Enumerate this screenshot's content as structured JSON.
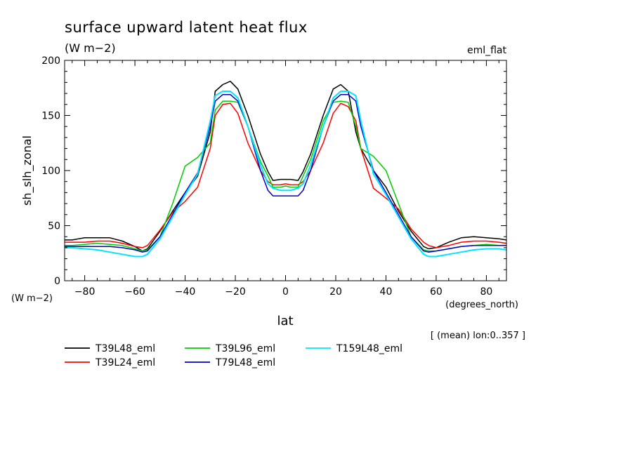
{
  "chart_data": {
    "type": "line",
    "title": "surface upward latent heat flux",
    "units": "(W m−2)",
    "experiment": "eml_flat",
    "ylabel": "sh_slh_zonal",
    "yunits": "(W m−2)",
    "xlabel": "lat",
    "xunits": "(degrees_north)",
    "note": "[ (mean) lon:0..357 ]",
    "xlim": [
      -88,
      88
    ],
    "ylim": [
      0,
      200
    ],
    "x_ticks": [
      -80,
      -60,
      -40,
      -20,
      0,
      20,
      40,
      60,
      80
    ],
    "y_ticks": [
      0,
      50,
      100,
      150,
      200
    ],
    "x_tick_labels": [
      "−80",
      "−60",
      "−40",
      "−20",
      "0",
      "20",
      "40",
      "60",
      "80"
    ],
    "y_tick_labels": [
      "0",
      "50",
      "100",
      "150",
      "200"
    ],
    "legend_position": "bottom",
    "series": [
      {
        "name": "T39L48_eml",
        "color": "#000000",
        "x": [
          -88,
          -85,
          -80,
          -75,
          -70,
          -65,
          -60,
          -57,
          -55,
          -50,
          -45,
          -40,
          -35,
          -30,
          -28,
          -25,
          -22,
          -19,
          -15,
          -10,
          -7,
          -5,
          -2,
          0,
          2,
          5,
          7,
          10,
          15,
          19,
          22,
          25,
          28,
          30,
          35,
          40,
          45,
          50,
          55,
          57,
          60,
          65,
          70,
          75,
          80,
          85,
          88
        ],
        "y": [
          37,
          37,
          39,
          39,
          39,
          36,
          31,
          27,
          29,
          45,
          63,
          80,
          95,
          135,
          172,
          178,
          181,
          174,
          150,
          115,
          99,
          91,
          92,
          92,
          92,
          91,
          99,
          115,
          150,
          174,
          178,
          172,
          135,
          120,
          100,
          85,
          63,
          45,
          31,
          29,
          30,
          35,
          39,
          40,
          39,
          38,
          37
        ]
      },
      {
        "name": "T39L24_eml",
        "color": "#ff0000",
        "x": [
          -88,
          -85,
          -80,
          -75,
          -70,
          -65,
          -60,
          -57,
          -55,
          -50,
          -45,
          -40,
          -35,
          -30,
          -28,
          -25,
          -22,
          -19,
          -15,
          -10,
          -7,
          -5,
          -2,
          0,
          2,
          5,
          7,
          10,
          15,
          19,
          22,
          25,
          28,
          30,
          35,
          40,
          45,
          50,
          55,
          57,
          60,
          65,
          70,
          75,
          80,
          85,
          88
        ],
        "y": [
          35,
          35,
          35,
          36,
          36,
          34,
          31,
          30,
          32,
          46,
          62,
          72,
          85,
          120,
          150,
          160,
          161,
          152,
          125,
          100,
          90,
          87,
          87,
          88,
          87,
          87,
          90,
          100,
          125,
          152,
          161,
          158,
          145,
          120,
          84,
          75,
          65,
          47,
          35,
          32,
          30,
          32,
          35,
          36,
          36,
          35,
          34
        ]
      },
      {
        "name": "T39L96_eml",
        "color": "#00cc00",
        "x": [
          -88,
          -85,
          -80,
          -75,
          -70,
          -65,
          -60,
          -57,
          -55,
          -50,
          -45,
          -40,
          -35,
          -30,
          -28,
          -25,
          -22,
          -19,
          -15,
          -10,
          -7,
          -5,
          -2,
          0,
          2,
          5,
          7,
          10,
          15,
          19,
          22,
          25,
          28,
          30,
          35,
          40,
          45,
          50,
          55,
          57,
          60,
          65,
          70,
          75,
          80,
          85,
          88
        ],
        "y": [
          32,
          32,
          33,
          34,
          33,
          32,
          29,
          27,
          28,
          40,
          70,
          104,
          112,
          125,
          155,
          163,
          163,
          162,
          140,
          108,
          95,
          85,
          85,
          86,
          85,
          85,
          95,
          110,
          145,
          162,
          163,
          162,
          140,
          120,
          113,
          100,
          70,
          40,
          28,
          27,
          27,
          29,
          31,
          32,
          33,
          32,
          32
        ]
      },
      {
        "name": "T79L48_eml",
        "color": "#0000cc",
        "x": [
          -88,
          -85,
          -80,
          -75,
          -70,
          -65,
          -60,
          -57,
          -55,
          -50,
          -45,
          -40,
          -35,
          -30,
          -28,
          -25,
          -22,
          -19,
          -15,
          -10,
          -7,
          -5,
          -2,
          0,
          2,
          5,
          7,
          10,
          15,
          19,
          22,
          25,
          28,
          30,
          35,
          40,
          45,
          50,
          55,
          57,
          60,
          65,
          70,
          75,
          80,
          85,
          88
        ],
        "y": [
          31,
          31,
          31,
          31,
          31,
          30,
          28,
          26,
          27,
          40,
          60,
          80,
          98,
          140,
          163,
          169,
          169,
          163,
          140,
          100,
          82,
          77,
          77,
          77,
          77,
          77,
          82,
          100,
          140,
          163,
          169,
          169,
          163,
          140,
          100,
          80,
          60,
          40,
          27,
          26,
          27,
          29,
          31,
          32,
          32,
          32,
          32
        ]
      },
      {
        "name": "T159L48_eml",
        "color": "#00e5ff",
        "x": [
          -88,
          -85,
          -80,
          -75,
          -70,
          -65,
          -60,
          -57,
          -55,
          -50,
          -45,
          -40,
          -35,
          -30,
          -28,
          -25,
          -22,
          -19,
          -15,
          -10,
          -7,
          -5,
          -2,
          0,
          2,
          5,
          7,
          10,
          15,
          19,
          22,
          25,
          28,
          30,
          35,
          40,
          45,
          50,
          55,
          57,
          60,
          65,
          70,
          75,
          80,
          85,
          88
        ],
        "y": [
          30,
          30,
          29,
          28,
          26,
          24,
          22,
          22,
          24,
          38,
          58,
          78,
          97,
          145,
          168,
          172,
          172,
          166,
          140,
          105,
          88,
          84,
          82,
          82,
          82,
          84,
          88,
          105,
          140,
          166,
          172,
          172,
          168,
          145,
          97,
          78,
          58,
          38,
          24,
          22,
          22,
          24,
          26,
          28,
          29,
          29,
          28
        ]
      }
    ]
  }
}
